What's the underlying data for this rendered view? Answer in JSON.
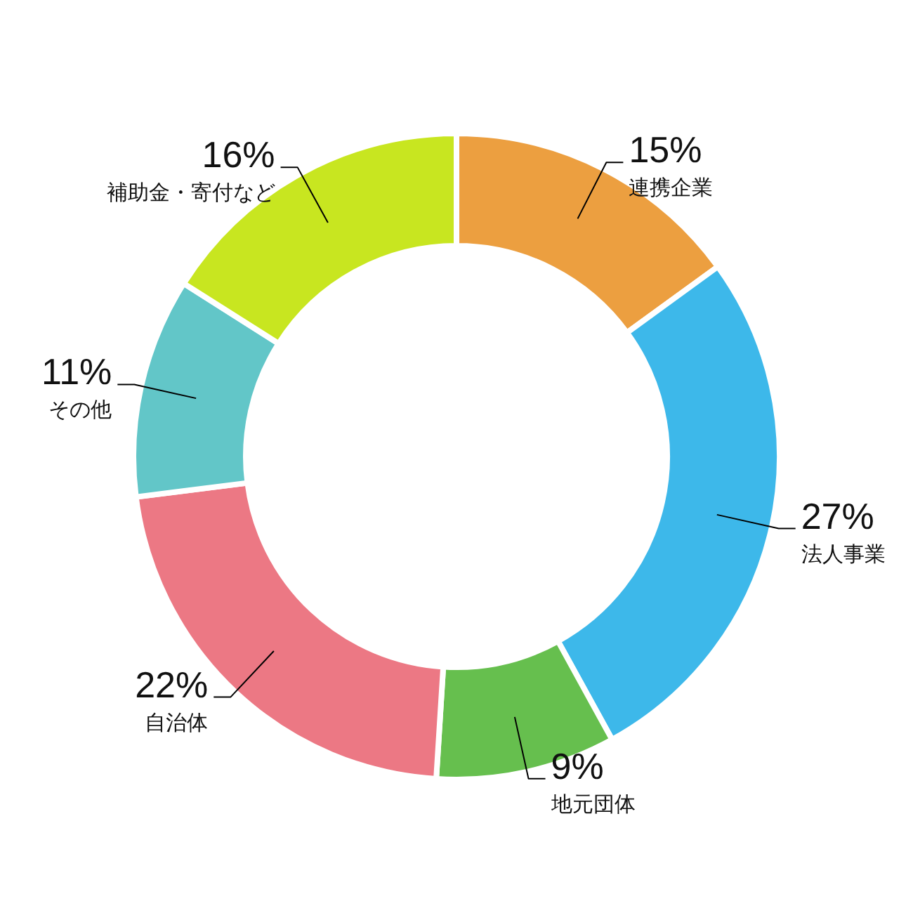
{
  "chart_data": {
    "type": "donut",
    "categories": [
      "連携企業",
      "法人事業",
      "地元団体",
      "自治体",
      "その他",
      "補助金・寄付など"
    ],
    "values": [
      15,
      27,
      9,
      22,
      11,
      16
    ],
    "colors": [
      "#ec9f40",
      "#3db8ea",
      "#66bf4e",
      "#ec7884",
      "#62c6c8",
      "#c8e620"
    ],
    "value_labels": [
      "15%",
      "27%",
      "9%",
      "22%",
      "11%",
      "16%"
    ]
  }
}
